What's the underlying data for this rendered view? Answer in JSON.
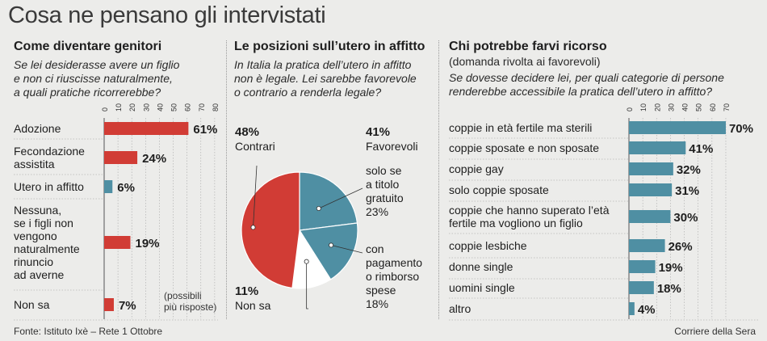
{
  "title": "Cosa ne pensano gli intervistati",
  "footer": {
    "source": "Fonte: Istituto Ixè – Rete 1 Ottobre",
    "credit": "Corriere della Sera"
  },
  "colors": {
    "red": "#d13c35",
    "teal": "#4f8fa3",
    "white": "#ffffff",
    "background": "#ececea"
  },
  "chart_data": [
    {
      "type": "bar",
      "orientation": "horizontal",
      "title": "Come diventare genitori",
      "question": "Se lei desiderasse avere un figlio\ne non ci riuscisse naturalmente,\na quali pratiche ricorrerebbe?",
      "note": "(possibili\npiù risposte)",
      "categories": [
        "Adozione",
        "Fecondazione\nassistita",
        "Utero in affitto",
        "Nessuna,\nse i figli non\nvengono\nnaturalmente\nrinuncio\nad averne",
        "Non sa"
      ],
      "values": [
        61,
        24,
        6,
        19,
        7
      ],
      "value_labels": [
        "61%",
        "24%",
        "6%",
        "19%",
        "7%"
      ],
      "bar_colors": [
        "red",
        "red",
        "teal",
        "red",
        "red"
      ],
      "ticks": [
        0,
        10,
        20,
        30,
        40,
        50,
        60,
        70,
        80
      ],
      "tick_labels": [
        "0",
        "10",
        "20",
        "30",
        "40",
        "50",
        "60",
        "70",
        "80"
      ],
      "xlim": [
        0,
        80
      ]
    },
    {
      "type": "pie",
      "title": "Le posizioni sull’utero in affitto",
      "question": "In Italia la pratica dell’utero in affitto\nnon è legale. Lei sarebbe favorevole\no contrario a renderla legale?",
      "slices": [
        {
          "label": "solo se\na titolo\ngratuito",
          "value": 23,
          "value_label": "23%",
          "color": "teal"
        },
        {
          "label": "con\npagamento\no rimborso\nspese",
          "value": 18,
          "value_label": "18%",
          "color": "teal"
        },
        {
          "label": "Non sa",
          "value": 11,
          "value_label": "11%",
          "color": "white"
        },
        {
          "label": "Contrari",
          "value": 48,
          "value_label": "48%",
          "color": "red"
        }
      ],
      "groups": [
        {
          "label": "Favorevoli",
          "value_label": "41%"
        }
      ]
    },
    {
      "type": "bar",
      "orientation": "horizontal",
      "title": "Chi potrebbe farvi ricorso",
      "subtitle": "(domanda rivolta ai favorevoli)",
      "question": "Se dovesse decidere lei, per quali categorie di persone\nrenderebbe accessibile la pratica dell’utero in affitto?",
      "categories": [
        "coppie in età fertile ma sterili",
        "coppie sposate e non sposate",
        "coppie gay",
        "solo coppie sposate",
        "coppie che hanno superato l’età\nfertile ma vogliono un figlio",
        "coppie lesbiche",
        "donne single",
        "uomini single",
        "altro"
      ],
      "values": [
        70,
        41,
        32,
        31,
        30,
        26,
        19,
        18,
        4
      ],
      "value_labels": [
        "70%",
        "41%",
        "32%",
        "31%",
        "30%",
        "26%",
        "19%",
        "18%",
        "4%"
      ],
      "ticks": [
        0,
        10,
        20,
        30,
        40,
        50,
        60,
        70
      ],
      "tick_labels": [
        "0",
        "10",
        "20",
        "30",
        "40",
        "50",
        "60",
        "70"
      ],
      "xlim": [
        0,
        70
      ]
    }
  ]
}
